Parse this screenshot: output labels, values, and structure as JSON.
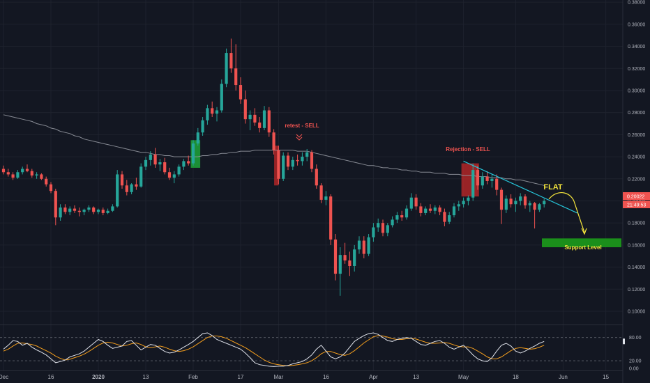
{
  "colors": {
    "background": "#131722",
    "up": "#26a69a",
    "down": "#ef5350",
    "grid": "#1e222d",
    "ma": "#9598a1",
    "trendline": "#26c6da",
    "support_zone": "#1b8f1b",
    "highlight_green": "#1fa53a",
    "highlight_red": "#c62828",
    "annotation_red": "#ef5350",
    "annotation_yellow": "#f5e63c",
    "osc_fast": "#e0e3eb",
    "osc_slow": "#f59f1d"
  },
  "chart_data": [
    {
      "type": "candlestick",
      "title": "",
      "x_ticks": [
        {
          "label": "Dec",
          "t": 0
        },
        {
          "label": "16",
          "t": 10
        },
        {
          "label": "2020",
          "t": 20
        },
        {
          "label": "13",
          "t": 30
        },
        {
          "label": "Feb",
          "t": 40
        },
        {
          "label": "17",
          "t": 50
        },
        {
          "label": "Mar",
          "t": 58
        },
        {
          "label": "16",
          "t": 68
        },
        {
          "label": "Apr",
          "t": 78
        },
        {
          "label": "13",
          "t": 87
        },
        {
          "label": "May",
          "t": 97
        },
        {
          "label": "18",
          "t": 108
        },
        {
          "label": "Jun",
          "t": 118
        },
        {
          "label": "15",
          "t": 127
        }
      ],
      "y_ticks": [
        "0.10000",
        "0.12000",
        "0.14000",
        "0.16000",
        "0.18000",
        "0.20000",
        "0.22000",
        "0.24000",
        "0.26000",
        "0.28000",
        "0.30000",
        "0.32000",
        "0.34000",
        "0.36000",
        "0.38000"
      ],
      "ylim": [
        0.088,
        0.382
      ],
      "grid": false,
      "candles": [
        [
          0.229,
          0.232,
          0.224,
          0.226
        ],
        [
          0.226,
          0.229,
          0.222,
          0.224
        ],
        [
          0.224,
          0.226,
          0.219,
          0.221
        ],
        [
          0.221,
          0.228,
          0.22,
          0.226
        ],
        [
          0.226,
          0.231,
          0.224,
          0.229
        ],
        [
          0.229,
          0.233,
          0.226,
          0.227
        ],
        [
          0.227,
          0.229,
          0.221,
          0.223
        ],
        [
          0.223,
          0.226,
          0.22,
          0.224
        ],
        [
          0.224,
          0.225,
          0.219,
          0.22
        ],
        [
          0.22,
          0.222,
          0.213,
          0.215
        ],
        [
          0.215,
          0.217,
          0.207,
          0.209
        ],
        [
          0.209,
          0.211,
          0.178,
          0.185
        ],
        [
          0.185,
          0.197,
          0.182,
          0.194
        ],
        [
          0.194,
          0.197,
          0.188,
          0.19
        ],
        [
          0.19,
          0.195,
          0.187,
          0.193
        ],
        [
          0.193,
          0.196,
          0.189,
          0.191
        ],
        [
          0.191,
          0.194,
          0.186,
          0.19
        ],
        [
          0.19,
          0.193,
          0.187,
          0.192
        ],
        [
          0.192,
          0.196,
          0.19,
          0.194
        ],
        [
          0.194,
          0.195,
          0.188,
          0.19
        ],
        [
          0.19,
          0.193,
          0.188,
          0.192
        ],
        [
          0.192,
          0.194,
          0.187,
          0.189
        ],
        [
          0.189,
          0.193,
          0.188,
          0.191
        ],
        [
          0.191,
          0.197,
          0.19,
          0.195
        ],
        [
          0.195,
          0.228,
          0.194,
          0.224
        ],
        [
          0.224,
          0.227,
          0.211,
          0.214
        ],
        [
          0.214,
          0.219,
          0.205,
          0.208
        ],
        [
          0.208,
          0.216,
          0.206,
          0.215
        ],
        [
          0.215,
          0.221,
          0.21,
          0.213
        ],
        [
          0.213,
          0.234,
          0.212,
          0.231
        ],
        [
          0.231,
          0.24,
          0.228,
          0.237
        ],
        [
          0.237,
          0.245,
          0.232,
          0.242
        ],
        [
          0.242,
          0.248,
          0.23,
          0.233
        ],
        [
          0.233,
          0.238,
          0.227,
          0.235
        ],
        [
          0.235,
          0.239,
          0.224,
          0.226
        ],
        [
          0.226,
          0.23,
          0.219,
          0.221
        ],
        [
          0.221,
          0.227,
          0.216,
          0.224
        ],
        [
          0.224,
          0.233,
          0.222,
          0.231
        ],
        [
          0.231,
          0.238,
          0.228,
          0.236
        ],
        [
          0.236,
          0.241,
          0.232,
          0.234
        ],
        [
          0.234,
          0.255,
          0.232,
          0.252
        ],
        [
          0.252,
          0.266,
          0.25,
          0.262
        ],
        [
          0.262,
          0.276,
          0.259,
          0.273
        ],
        [
          0.273,
          0.287,
          0.269,
          0.284
        ],
        [
          0.284,
          0.29,
          0.276,
          0.279
        ],
        [
          0.279,
          0.285,
          0.272,
          0.282
        ],
        [
          0.282,
          0.31,
          0.28,
          0.306
        ],
        [
          0.306,
          0.338,
          0.303,
          0.334
        ],
        [
          0.334,
          0.347,
          0.316,
          0.32
        ],
        [
          0.32,
          0.342,
          0.3,
          0.305
        ],
        [
          0.305,
          0.312,
          0.288,
          0.292
        ],
        [
          0.292,
          0.3,
          0.27,
          0.274
        ],
        [
          0.274,
          0.282,
          0.264,
          0.278
        ],
        [
          0.278,
          0.284,
          0.268,
          0.271
        ],
        [
          0.271,
          0.276,
          0.262,
          0.266
        ],
        [
          0.266,
          0.286,
          0.264,
          0.282
        ],
        [
          0.282,
          0.285,
          0.258,
          0.262
        ],
        [
          0.262,
          0.265,
          0.242,
          0.246
        ],
        [
          0.246,
          0.25,
          0.215,
          0.22
        ],
        [
          0.22,
          0.244,
          0.218,
          0.241
        ],
        [
          0.241,
          0.244,
          0.228,
          0.231
        ],
        [
          0.231,
          0.24,
          0.228,
          0.237
        ],
        [
          0.237,
          0.242,
          0.232,
          0.236
        ],
        [
          0.236,
          0.244,
          0.232,
          0.24
        ],
        [
          0.24,
          0.247,
          0.236,
          0.244
        ],
        [
          0.244,
          0.246,
          0.226,
          0.229
        ],
        [
          0.229,
          0.233,
          0.211,
          0.214
        ],
        [
          0.214,
          0.216,
          0.198,
          0.201
        ],
        [
          0.201,
          0.209,
          0.196,
          0.204
        ],
        [
          0.204,
          0.206,
          0.16,
          0.165
        ],
        [
          0.165,
          0.17,
          0.128,
          0.134
        ],
        [
          0.134,
          0.158,
          0.114,
          0.151
        ],
        [
          0.151,
          0.162,
          0.143,
          0.146
        ],
        [
          0.146,
          0.154,
          0.132,
          0.141
        ],
        [
          0.141,
          0.16,
          0.136,
          0.156
        ],
        [
          0.156,
          0.168,
          0.152,
          0.164
        ],
        [
          0.164,
          0.168,
          0.148,
          0.152
        ],
        [
          0.152,
          0.17,
          0.15,
          0.167
        ],
        [
          0.167,
          0.18,
          0.163,
          0.176
        ],
        [
          0.176,
          0.184,
          0.172,
          0.18
        ],
        [
          0.18,
          0.183,
          0.168,
          0.171
        ],
        [
          0.171,
          0.18,
          0.168,
          0.178
        ],
        [
          0.178,
          0.186,
          0.176,
          0.183
        ],
        [
          0.183,
          0.19,
          0.18,
          0.187
        ],
        [
          0.187,
          0.191,
          0.182,
          0.185
        ],
        [
          0.185,
          0.196,
          0.183,
          0.193
        ],
        [
          0.193,
          0.207,
          0.191,
          0.203
        ],
        [
          0.203,
          0.206,
          0.192,
          0.195
        ],
        [
          0.195,
          0.198,
          0.186,
          0.189
        ],
        [
          0.189,
          0.195,
          0.187,
          0.193
        ],
        [
          0.193,
          0.197,
          0.189,
          0.191
        ],
        [
          0.191,
          0.196,
          0.188,
          0.194
        ],
        [
          0.194,
          0.196,
          0.187,
          0.19
        ],
        [
          0.19,
          0.193,
          0.177,
          0.181
        ],
        [
          0.181,
          0.19,
          0.179,
          0.187
        ],
        [
          0.187,
          0.198,
          0.185,
          0.195
        ],
        [
          0.195,
          0.2,
          0.191,
          0.197
        ],
        [
          0.197,
          0.203,
          0.194,
          0.2
        ],
        [
          0.2,
          0.205,
          0.196,
          0.203
        ],
        [
          0.203,
          0.234,
          0.2,
          0.228
        ],
        [
          0.228,
          0.232,
          0.21,
          0.214
        ],
        [
          0.214,
          0.226,
          0.211,
          0.222
        ],
        [
          0.222,
          0.227,
          0.215,
          0.218
        ],
        [
          0.218,
          0.224,
          0.212,
          0.22
        ],
        [
          0.22,
          0.224,
          0.205,
          0.21
        ],
        [
          0.21,
          0.212,
          0.179,
          0.192
        ],
        [
          0.192,
          0.205,
          0.189,
          0.202
        ],
        [
          0.202,
          0.206,
          0.194,
          0.197
        ],
        [
          0.197,
          0.203,
          0.19,
          0.2
        ],
        [
          0.2,
          0.207,
          0.196,
          0.204
        ],
        [
          0.204,
          0.206,
          0.193,
          0.196
        ],
        [
          0.196,
          0.2,
          0.19,
          0.198
        ],
        [
          0.198,
          0.199,
          0.175,
          0.192
        ],
        [
          0.192,
          0.198,
          0.19,
          0.197
        ],
        [
          0.197,
          0.202,
          0.194,
          0.2
        ]
      ],
      "ma": [
        0.278,
        0.277,
        0.276,
        0.275,
        0.274,
        0.273,
        0.272,
        0.27,
        0.269,
        0.268,
        0.266,
        0.265,
        0.263,
        0.262,
        0.261,
        0.259,
        0.258,
        0.256,
        0.255,
        0.254,
        0.253,
        0.252,
        0.251,
        0.25,
        0.249,
        0.248,
        0.247,
        0.246,
        0.245,
        0.244,
        0.244,
        0.243,
        0.242,
        0.242,
        0.241,
        0.241,
        0.24,
        0.24,
        0.24,
        0.24,
        0.24,
        0.24,
        0.241,
        0.241,
        0.242,
        0.242,
        0.243,
        0.243,
        0.244,
        0.244,
        0.245,
        0.245,
        0.245,
        0.246,
        0.246,
        0.246,
        0.246,
        0.246,
        0.246,
        0.246,
        0.246,
        0.246,
        0.245,
        0.245,
        0.245,
        0.244,
        0.243,
        0.242,
        0.241,
        0.24,
        0.239,
        0.238,
        0.237,
        0.236,
        0.235,
        0.234,
        0.233,
        0.232,
        0.232,
        0.231,
        0.23,
        0.23,
        0.229,
        0.229,
        0.228,
        0.228,
        0.227,
        0.227,
        0.226,
        0.226,
        0.226,
        0.225,
        0.225,
        0.225,
        0.224,
        0.224,
        0.224,
        0.223,
        0.223,
        0.223,
        0.222,
        0.222,
        0.222,
        0.221,
        0.221,
        0.221,
        0.22,
        0.22,
        0.219,
        0.219,
        0.218,
        0.217,
        0.216,
        0.215,
        0.214
      ],
      "support_zone": [
        0.158,
        0.166
      ],
      "trendline": [
        [
          97,
          0.236
        ],
        [
          121,
          0.189
        ]
      ],
      "price_label": "0.20022",
      "countdown_label": "21:49:53",
      "current_price": 0.20022,
      "annotations": {
        "retest_sell": "retest - SELL",
        "rejection_sell": "Rejection - SELL",
        "flat": "FLAT",
        "support_level": "Support Level"
      }
    },
    {
      "type": "line",
      "ylim": [
        -5,
        110
      ],
      "y_ticks": [
        "0.00",
        "20.00",
        "80.00"
      ],
      "levels": [
        20,
        80
      ],
      "fast": [
        50,
        60,
        72,
        70,
        60,
        65,
        55,
        48,
        42,
        35,
        25,
        15,
        18,
        22,
        30,
        34,
        38,
        45,
        55,
        65,
        75,
        70,
        60,
        52,
        55,
        58,
        70,
        72,
        60,
        48,
        55,
        62,
        60,
        52,
        44,
        40,
        42,
        48,
        55,
        62,
        70,
        80,
        90,
        92,
        85,
        75,
        70,
        65,
        60,
        55,
        50,
        40,
        28,
        15,
        10,
        8,
        6,
        5,
        6,
        6,
        8,
        12,
        15,
        18,
        25,
        35,
        50,
        60,
        45,
        30,
        25,
        30,
        40,
        55,
        70,
        78,
        85,
        90,
        92,
        88,
        80,
        72,
        70,
        75,
        78,
        80,
        78,
        70,
        62,
        60,
        65,
        70,
        72,
        65,
        55,
        50,
        55,
        60,
        48,
        35,
        25,
        20,
        18,
        28,
        45,
        60,
        65,
        58,
        45,
        40,
        45,
        52,
        58,
        65,
        70
      ],
      "slow": [
        45,
        50,
        58,
        65,
        66,
        64,
        62,
        58,
        52,
        46,
        40,
        32,
        26,
        22,
        24,
        28,
        32,
        37,
        44,
        52,
        60,
        66,
        68,
        66,
        62,
        58,
        60,
        64,
        66,
        62,
        56,
        54,
        56,
        58,
        55,
        50,
        46,
        44,
        46,
        50,
        56,
        64,
        72,
        80,
        84,
        84,
        82,
        78,
        72,
        66,
        60,
        54,
        46,
        38,
        30,
        22,
        16,
        12,
        10,
        8,
        7,
        8,
        10,
        12,
        15,
        20,
        28,
        38,
        44,
        44,
        40,
        36,
        34,
        38,
        46,
        56,
        66,
        74,
        82,
        85,
        84,
        81,
        77,
        75,
        75,
        77,
        78,
        76,
        72,
        68,
        65,
        65,
        66,
        67,
        65,
        61,
        57,
        56,
        56,
        52,
        45,
        38,
        30,
        25,
        25,
        30,
        38,
        46,
        52,
        54,
        52,
        50,
        51,
        55,
        60
      ]
    }
  ]
}
